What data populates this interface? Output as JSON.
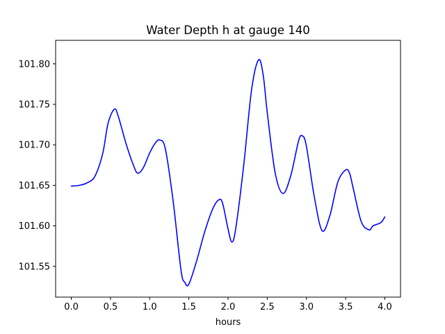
{
  "chart_data": {
    "type": "line",
    "title": "Water Depth h at gauge 140",
    "xlabel": "hours",
    "ylabel": "",
    "xlim": [
      -0.2,
      4.2
    ],
    "ylim": [
      101.512,
      101.829
    ],
    "xticks": [
      "0.0",
      "0.5",
      "1.0",
      "1.5",
      "2.0",
      "2.5",
      "3.0",
      "3.5",
      "4.0"
    ],
    "yticks": [
      "101.55",
      "101.60",
      "101.65",
      "101.70",
      "101.75",
      "101.80"
    ],
    "grid": false,
    "line_color": "#0000ff",
    "series": [
      {
        "x": [
          0.0,
          0.1,
          0.2,
          0.3,
          0.4,
          0.47,
          0.55,
          0.6,
          0.7,
          0.8,
          0.85,
          0.92,
          1.0,
          1.07,
          1.13,
          1.2,
          1.3,
          1.4,
          1.45,
          1.5,
          1.6,
          1.7,
          1.8,
          1.88,
          1.93,
          2.0,
          2.05,
          2.1,
          2.2,
          2.3,
          2.39,
          2.45,
          2.5,
          2.6,
          2.7,
          2.8,
          2.9,
          2.95,
          3.0,
          3.1,
          3.2,
          3.3,
          3.4,
          3.5,
          3.55,
          3.6,
          3.7,
          3.8,
          3.85,
          3.95,
          4.0
        ],
        "y": [
          101.649,
          101.65,
          101.653,
          101.661,
          101.689,
          101.727,
          101.744,
          101.735,
          101.701,
          101.673,
          101.665,
          101.672,
          101.69,
          101.702,
          101.706,
          101.695,
          101.63,
          101.545,
          101.53,
          101.528,
          101.557,
          101.592,
          101.62,
          101.632,
          101.628,
          101.596,
          101.58,
          101.598,
          101.675,
          101.768,
          101.805,
          101.785,
          101.74,
          101.666,
          101.64,
          101.662,
          101.705,
          101.711,
          101.698,
          101.636,
          101.594,
          101.613,
          101.654,
          101.669,
          101.665,
          101.645,
          101.605,
          101.595,
          101.6,
          101.604,
          101.611
        ]
      }
    ]
  }
}
